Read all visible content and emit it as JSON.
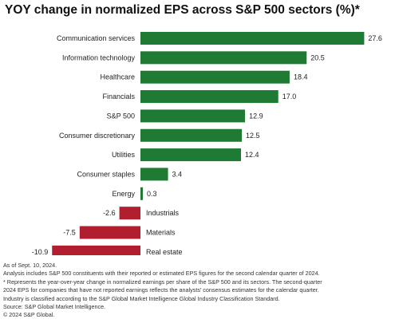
{
  "title": "YOY change in normalized EPS across S&P 500 sectors (%)*",
  "colors": {
    "positive": "#1f7a34",
    "negative": "#b01e2f"
  },
  "chart_data": {
    "type": "bar",
    "orientation": "horizontal",
    "categories": [
      "Communication services",
      "Information technology",
      "Healthcare",
      "Financials",
      "S&P 500",
      "Consumer discretionary",
      "Utilities",
      "Consumer staples",
      "Energy",
      "Industrials",
      "Materials",
      "Real estate"
    ],
    "values": [
      27.6,
      20.5,
      18.4,
      17.0,
      12.9,
      12.5,
      12.4,
      3.4,
      0.3,
      -2.6,
      -7.5,
      -10.9
    ],
    "value_labels": [
      "27.6",
      "20.5",
      "18.4",
      "17.0",
      "12.9",
      "12.5",
      "12.4",
      "3.4",
      "0.3",
      "-2.6",
      "-7.5",
      "-10.9"
    ],
    "grid": false,
    "legend": "none"
  },
  "notes": [
    "As of Sept. 10, 2024.",
    "Analysis includes S&P 500 constituents with their reported or estimated EPS figures for the second calendar quarter of 2024.",
    "* Represents the year-over-year change in normalized earnings per share of the S&P 500 and its sectors. The second-quarter",
    "2024 EPS for companies that have not reported earnings reflects the analysts' consensus estimates for the calendar quarter.",
    "Industry is classified according to the S&P Global Market Intelligence Global Industry Classification Standard.",
    "Source: S&P Global Market Intelligence.",
    "© 2024 S&P Global."
  ]
}
